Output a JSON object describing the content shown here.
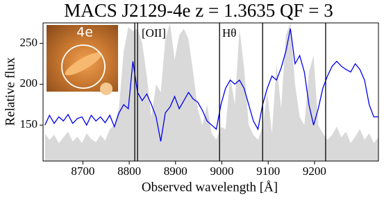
{
  "chart_data": {
    "type": "line",
    "title": "MACS J2129-4e z = 1.3635 QF = 3",
    "xlabel": "Observed wavelength [Å]",
    "ylabel": "Relative flux",
    "annotations": [
      "[OII]",
      "Hθ"
    ],
    "inset_label": "4e",
    "x": [
      8618,
      8628,
      8638,
      8648,
      8658,
      8668,
      8678,
      8688,
      8698,
      8708,
      8718,
      8728,
      8738,
      8748,
      8758,
      8768,
      8778,
      8788,
      8798,
      8808,
      8818,
      8828,
      8838,
      8848,
      8858,
      8868,
      8878,
      8888,
      8898,
      8908,
      8918,
      8928,
      8938,
      8948,
      8958,
      8968,
      8978,
      8988,
      8998,
      9008,
      9018,
      9028,
      9038,
      9048,
      9058,
      9068,
      9078,
      9088,
      9098,
      9108,
      9118,
      9128,
      9138,
      9148,
      9158,
      9168,
      9178,
      9188,
      9198,
      9208,
      9218,
      9228,
      9238,
      9248,
      9258,
      9268,
      9278,
      9288,
      9298,
      9308,
      9318,
      9328,
      9338
    ],
    "series": [
      {
        "color": "#d9d9d9",
        "fill": true,
        "values": [
          140,
          132,
          138,
          128,
          135,
          142,
          130,
          136,
          128,
          140,
          133,
          129,
          138,
          131,
          145,
          150,
          172,
          240,
          270,
          265,
          268,
          250,
          210,
          160,
          200,
          190,
          255,
          275,
          230,
          260,
          268,
          255,
          215,
          170,
          150,
          175,
          140,
          132,
          148,
          145,
          210,
          175,
          268,
          220,
          150,
          138,
          132,
          148,
          190,
          140,
          225,
          170,
          260,
          275,
          200,
          160,
          150,
          215,
          235,
          150,
          140,
          132,
          138,
          148,
          135,
          142,
          128,
          136,
          145,
          132,
          140,
          128,
          135
        ]
      },
      {
        "color": "#0000ee",
        "values": [
          150,
          162,
          152,
          160,
          155,
          163,
          152,
          158,
          160,
          150,
          162,
          155,
          160,
          153,
          162,
          148,
          165,
          175,
          170,
          228,
          190,
          180,
          188,
          175,
          160,
          130,
          165,
          172,
          185,
          170,
          180,
          190,
          182,
          178,
          168,
          155,
          150,
          145,
          175,
          195,
          205,
          200,
          205,
          195,
          175,
          155,
          145,
          175,
          195,
          210,
          205,
          220,
          240,
          268,
          225,
          235,
          215,
          175,
          150,
          170,
          195,
          210,
          222,
          228,
          222,
          218,
          215,
          225,
          218,
          205,
          175,
          160,
          160
        ]
      }
    ],
    "vlines": [
      8812,
      8818,
      8995,
      9088,
      9224
    ],
    "vline_color": "#000000",
    "xlim": [
      8614,
      9338
    ],
    "ylim": [
      106,
      275
    ],
    "xticks": [
      8700,
      8800,
      8900,
      9000,
      9100,
      9200
    ],
    "yticks": [
      150,
      200,
      250
    ]
  }
}
